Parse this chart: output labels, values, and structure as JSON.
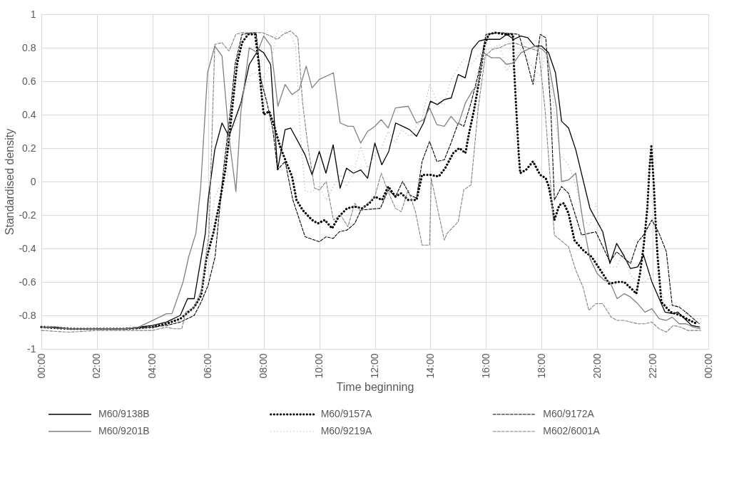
{
  "chart_data": {
    "type": "line",
    "xlabel": "Time beginning",
    "ylabel": "Standardised density",
    "xlim": [
      0,
      24
    ],
    "xticks": [
      {
        "value": 0,
        "label": "00:00"
      },
      {
        "value": 2,
        "label": "02:00"
      },
      {
        "value": 4,
        "label": "04:00"
      },
      {
        "value": 6,
        "label": "06:00"
      },
      {
        "value": 8,
        "label": "08:00"
      },
      {
        "value": 10,
        "label": "10:00"
      },
      {
        "value": 12,
        "label": "12:00"
      },
      {
        "value": 14,
        "label": "14:00"
      },
      {
        "value": 16,
        "label": "16:00"
      },
      {
        "value": 18,
        "label": "18:00"
      },
      {
        "value": 20,
        "label": "20:00"
      },
      {
        "value": 22,
        "label": "22:00"
      },
      {
        "value": 24,
        "label": "00:00"
      }
    ],
    "ylim": [
      -1,
      1
    ],
    "yticks": [
      -1,
      -0.8,
      -0.6,
      -0.4,
      -0.2,
      0,
      0.2,
      0.4,
      0.6,
      0.8,
      1
    ],
    "grid": true,
    "legend": "bottom",
    "marker": "none",
    "series": [
      {
        "name": "M60/9138B",
        "color": "#000000",
        "line_style": "solid",
        "x": [
          0,
          0.5,
          1,
          1.5,
          2,
          2.5,
          3,
          3.5,
          4,
          4.5,
          5,
          5.26,
          5.5,
          5.9,
          6.0,
          6.24,
          6.5,
          6.75,
          7.18,
          7.48,
          7.82,
          8.0,
          8.25,
          8.5,
          8.77,
          8.97,
          9.49,
          9.74,
          10.0,
          10.24,
          10.5,
          10.75,
          10.98,
          11.23,
          11.49,
          11.74,
          12.0,
          12.25,
          12.5,
          12.75,
          13.0,
          13.25,
          13.5,
          13.75,
          14.0,
          14.25,
          14.5,
          14.75,
          15.0,
          15.25,
          15.5,
          15.75,
          16.0,
          16.5,
          16.75,
          17.0,
          17.25,
          17.5,
          17.75,
          18.0,
          18.25,
          18.5,
          18.72,
          18.97,
          19.23,
          19.74,
          20.0,
          20.2,
          20.46,
          20.7,
          20.95,
          21.2,
          21.46,
          21.67,
          21.97,
          22.44,
          22.74,
          22.9,
          23.15,
          23.4,
          23.7
        ],
        "values": [
          -0.87,
          -0.87,
          -0.88,
          -0.88,
          -0.88,
          -0.88,
          -0.88,
          -0.87,
          -0.86,
          -0.84,
          -0.8,
          -0.7,
          -0.7,
          -0.31,
          -0.11,
          0.19,
          0.35,
          0.27,
          0.47,
          0.7,
          0.79,
          0.77,
          0.7,
          0.07,
          0.31,
          0.32,
          0.16,
          0.04,
          0.18,
          0.05,
          0.22,
          -0.04,
          0.08,
          0.05,
          0.07,
          0.02,
          0.23,
          0.1,
          0.18,
          0.35,
          0.33,
          0.31,
          0.27,
          0.35,
          0.48,
          0.46,
          0.49,
          0.5,
          0.64,
          0.62,
          0.79,
          0.84,
          0.85,
          0.85,
          0.88,
          0.85,
          0.87,
          0.86,
          0.81,
          0.81,
          0.77,
          0.65,
          0.36,
          0.32,
          0.19,
          -0.16,
          -0.24,
          -0.3,
          -0.49,
          -0.37,
          -0.44,
          -0.52,
          -0.51,
          -0.44,
          -0.6,
          -0.78,
          -0.79,
          -0.78,
          -0.82,
          -0.86,
          -0.87
        ]
      },
      {
        "name": "M60/9157A",
        "color": "#000000",
        "line_style": "dotted",
        "x": [
          0,
          1,
          2,
          3,
          4,
          4.5,
          5,
          5.5,
          5.75,
          5.94,
          6.2,
          6.41,
          6.62,
          6.75,
          6.92,
          7.05,
          7.22,
          7.44,
          7.69,
          7.82,
          7.9,
          8.0,
          8.2,
          8.38,
          8.59,
          8.8,
          9.02,
          9.18,
          9.4,
          9.74,
          9.95,
          10.2,
          10.46,
          10.7,
          11.0,
          11.28,
          11.54,
          11.8,
          12.0,
          12.26,
          12.48,
          12.74,
          12.95,
          13.2,
          13.5,
          13.7,
          14.0,
          14.3,
          14.53,
          14.82,
          15.04,
          15.26,
          15.38,
          15.56,
          15.69,
          15.82,
          15.95,
          16.1,
          16.33,
          16.67,
          16.97,
          17.0,
          17.1,
          17.18,
          17.23,
          17.44,
          17.69,
          17.95,
          18.15,
          18.26,
          18.38,
          18.46,
          18.64,
          18.8,
          18.97,
          19.18,
          19.49,
          19.8,
          20.08,
          20.43,
          20.77,
          20.97,
          21.23,
          21.41,
          21.54,
          21.67,
          21.8,
          21.88,
          21.95,
          22.05,
          22.1,
          22.18,
          22.31,
          22.64,
          23.0,
          23.33,
          23.6
        ],
        "values": [
          -0.87,
          -0.88,
          -0.88,
          -0.88,
          -0.87,
          -0.85,
          -0.82,
          -0.75,
          -0.68,
          -0.46,
          -0.3,
          -0.13,
          0.07,
          0.25,
          0.52,
          0.71,
          0.83,
          0.88,
          0.88,
          0.71,
          0.56,
          0.4,
          0.42,
          0.33,
          0.21,
          0.12,
          0.03,
          -0.11,
          -0.17,
          -0.23,
          -0.25,
          -0.23,
          -0.28,
          -0.21,
          -0.16,
          -0.15,
          -0.16,
          -0.13,
          -0.09,
          -0.11,
          -0.03,
          -0.09,
          -0.07,
          -0.11,
          -0.11,
          0.04,
          0.04,
          0.03,
          0.08,
          0.17,
          0.2,
          0.17,
          0.28,
          0.42,
          0.54,
          0.68,
          0.82,
          0.88,
          0.89,
          0.88,
          0.88,
          0.71,
          0.4,
          0.16,
          0.05,
          0.07,
          0.12,
          0.04,
          0.02,
          -0.03,
          -0.14,
          -0.23,
          -0.14,
          -0.13,
          -0.19,
          -0.35,
          -0.41,
          -0.45,
          -0.52,
          -0.61,
          -0.6,
          -0.6,
          -0.64,
          -0.67,
          -0.55,
          -0.39,
          -0.17,
          0.07,
          0.21,
          -0.05,
          -0.23,
          -0.46,
          -0.72,
          -0.78,
          -0.8,
          -0.83,
          -0.85
        ]
      },
      {
        "name": "M60/9172A",
        "color": "#000000",
        "line_style": "dashed",
        "x": [
          0,
          1,
          2,
          3,
          4,
          4.5,
          5,
          5.5,
          5.75,
          6.0,
          6.25,
          6.54,
          6.8,
          6.97,
          7.22,
          7.73,
          7.9,
          8.12,
          8.33,
          8.5,
          8.77,
          9.05,
          9.49,
          10.0,
          10.25,
          10.5,
          10.72,
          11.0,
          11.28,
          11.5,
          12.2,
          12.48,
          12.74,
          13.0,
          13.26,
          13.5,
          13.7,
          13.97,
          14.23,
          14.5,
          14.74,
          15.0,
          15.2,
          15.46,
          15.72,
          15.9,
          16.0,
          16.5,
          17.18,
          17.44,
          17.69,
          17.95,
          18.15,
          18.33,
          18.46,
          18.72,
          18.97,
          19.44,
          19.95,
          20.46,
          20.7,
          21.2,
          21.46,
          21.67,
          21.97,
          22.23,
          22.49,
          22.7,
          22.95,
          23.26,
          23.67
        ],
        "values": [
          -0.87,
          -0.88,
          -0.88,
          -0.88,
          -0.87,
          -0.86,
          -0.84,
          -0.8,
          -0.72,
          -0.62,
          -0.45,
          0.05,
          0.42,
          0.7,
          0.88,
          0.89,
          0.61,
          0.47,
          0.31,
          0.07,
          0.12,
          -0.11,
          -0.33,
          -0.36,
          -0.33,
          -0.34,
          -0.3,
          -0.29,
          -0.25,
          -0.17,
          -0.16,
          -0.05,
          -0.09,
          0.0,
          -0.08,
          -0.1,
          0.12,
          0.24,
          0.12,
          0.13,
          0.23,
          0.35,
          0.33,
          0.47,
          0.64,
          0.79,
          0.88,
          0.89,
          0.88,
          0.74,
          0.58,
          0.88,
          0.86,
          0.44,
          -0.11,
          -0.03,
          -0.07,
          -0.32,
          -0.3,
          -0.48,
          -0.42,
          -0.49,
          -0.36,
          -0.32,
          -0.23,
          -0.31,
          -0.42,
          -0.74,
          -0.75,
          -0.79,
          -0.85
        ]
      },
      {
        "name": "M60/9201B",
        "color": "#808080",
        "line_style": "solid",
        "x": [
          0,
          1,
          2,
          3,
          3.5,
          4,
          4.5,
          4.7,
          5.1,
          5.3,
          5.56,
          5.73,
          5.98,
          6.24,
          6.5,
          6.75,
          7.0,
          7.18,
          7.48,
          7.77,
          8.0,
          8.26,
          8.51,
          8.77,
          9.02,
          9.28,
          9.53,
          9.74,
          10.0,
          10.51,
          10.75,
          11.03,
          11.23,
          11.49,
          11.74,
          12.0,
          12.23,
          12.48,
          12.74,
          13.2,
          13.5,
          13.76,
          13.97,
          14.23,
          14.5,
          14.74,
          15.0,
          15.26,
          15.5,
          15.72,
          15.9,
          16.2,
          16.5,
          16.74,
          17.0,
          17.26,
          17.5,
          17.77,
          18.03,
          18.2,
          18.54,
          18.72,
          18.97,
          19.23,
          19.49,
          19.74,
          20.0,
          20.26,
          20.46,
          20.72,
          20.97,
          21.2,
          21.46,
          21.72,
          21.97,
          22.23,
          22.49,
          22.7,
          22.95,
          23.2,
          23.46,
          23.72
        ],
        "values": [
          -0.87,
          -0.88,
          -0.88,
          -0.88,
          -0.87,
          -0.83,
          -0.79,
          -0.79,
          -0.6,
          -0.45,
          -0.31,
          -0.04,
          0.65,
          0.81,
          0.75,
          0.27,
          -0.06,
          0.42,
          0.8,
          0.77,
          0.87,
          0.81,
          0.45,
          0.58,
          0.52,
          0.55,
          0.69,
          0.56,
          0.61,
          0.65,
          0.35,
          0.33,
          0.33,
          0.23,
          0.3,
          0.33,
          0.37,
          0.32,
          0.44,
          0.45,
          0.35,
          0.37,
          0.44,
          0.34,
          0.33,
          0.39,
          0.34,
          0.47,
          0.54,
          0.58,
          0.77,
          0.74,
          0.74,
          0.7,
          0.71,
          0.77,
          0.79,
          0.81,
          0.79,
          0.76,
          0.44,
          0.0,
          0.01,
          0.05,
          -0.24,
          -0.46,
          -0.55,
          -0.59,
          -0.6,
          -0.7,
          -0.67,
          -0.69,
          -0.73,
          -0.78,
          -0.76,
          -0.82,
          -0.83,
          -0.81,
          -0.85,
          -0.85,
          -0.87,
          -0.88
        ]
      },
      {
        "name": "M60/9219A",
        "color": "#a6a6a6",
        "line_style": "dotted",
        "x": [
          0,
          1,
          2,
          3,
          4,
          4.5,
          5,
          5.5,
          5.75,
          6.07,
          6.24,
          6.5,
          6.75,
          7.0,
          7.26,
          7.52,
          7.73,
          7.95,
          8.25,
          8.38,
          8.5,
          8.77,
          8.97,
          9.15,
          9.3,
          9.49,
          9.74,
          10.0,
          10.25,
          10.5,
          10.77,
          10.98,
          11.23,
          11.49,
          11.74,
          12.0,
          12.23,
          12.48,
          12.74,
          12.95,
          13.26,
          13.5,
          13.71,
          13.97,
          14.23,
          14.49,
          14.74,
          15.0,
          15.2,
          15.46,
          15.72,
          15.97,
          16.2,
          16.49,
          16.74,
          17.0,
          17.26,
          17.51,
          17.74,
          17.95,
          18.15,
          18.4,
          18.67,
          18.97,
          19.23,
          19.49,
          19.74,
          19.95,
          20.2,
          20.46,
          20.7,
          20.95,
          21.2,
          21.46,
          21.72,
          21.97,
          22.18,
          22.44,
          22.7,
          22.95,
          23.2,
          23.46,
          23.72
        ],
        "values": [
          -0.86,
          -0.87,
          -0.88,
          -0.88,
          -0.87,
          -0.86,
          -0.83,
          -0.76,
          -0.66,
          -0.31,
          -0.09,
          0.0,
          0.29,
          0.35,
          0.52,
          0.64,
          0.65,
          0.61,
          0.7,
          0.82,
          0.9,
          0.89,
          0.88,
          0.81,
          0.33,
          -0.06,
          -0.06,
          -0.03,
          -0.11,
          -0.03,
          0.04,
          -0.03,
          0.05,
          0.21,
          0.08,
          0.16,
          0.2,
          0.3,
          0.23,
          0.31,
          0.27,
          0.33,
          0.38,
          0.58,
          0.48,
          0.46,
          0.61,
          0.68,
          0.73,
          0.7,
          0.75,
          0.79,
          0.79,
          0.82,
          0.66,
          0.73,
          0.79,
          0.72,
          0.67,
          0.63,
          0.77,
          0.5,
          0.16,
          0.1,
          -0.02,
          -0.23,
          -0.26,
          -0.13,
          -0.32,
          -0.51,
          -0.51,
          -0.42,
          -0.56,
          -0.6,
          -0.6,
          -0.56,
          -0.55,
          -0.74,
          -0.74,
          -0.74,
          -0.79,
          -0.82,
          -0.82
        ]
      },
      {
        "name": "M602/6001A",
        "color": "#808080",
        "line_style": "dashed",
        "x": [
          0,
          1,
          2,
          3,
          4,
          4.5,
          4.75,
          5.05,
          5.2,
          5.5,
          5.75,
          6.03,
          6.24,
          6.5,
          6.75,
          7.0,
          7.22,
          7.95,
          8.25,
          8.5,
          8.7,
          8.97,
          9.23,
          9.4,
          9.57,
          9.83,
          10.0,
          10.25,
          10.51,
          10.77,
          11.03,
          11.28,
          11.49,
          11.74,
          12.0,
          12.23,
          12.48,
          12.74,
          12.95,
          13.2,
          13.46,
          13.7,
          13.97,
          14.03,
          14.28,
          14.5,
          14.6,
          15.0,
          15.2,
          15.46,
          15.72,
          15.97,
          16.23,
          16.49,
          16.74,
          17.0,
          17.5,
          17.9,
          18.12,
          18.46,
          18.97,
          19.23,
          19.49,
          19.7,
          19.95,
          20.2,
          20.5,
          20.72,
          20.97,
          21.46,
          21.72,
          21.97,
          22.23,
          22.49,
          22.74,
          23.0,
          23.26,
          23.5,
          23.72
        ],
        "values": [
          -0.89,
          -0.9,
          -0.89,
          -0.89,
          -0.89,
          -0.87,
          -0.88,
          -0.88,
          -0.78,
          -0.75,
          -0.65,
          -0.31,
          0.82,
          0.83,
          0.78,
          0.88,
          0.89,
          0.89,
          0.87,
          0.85,
          0.88,
          0.9,
          0.86,
          0.47,
          0.24,
          -0.04,
          -0.05,
          0.0,
          -0.23,
          -0.2,
          -0.27,
          -0.13,
          -0.18,
          -0.13,
          -0.09,
          0.05,
          -0.06,
          -0.16,
          -0.18,
          -0.05,
          -0.18,
          -0.38,
          -0.38,
          0.02,
          -0.18,
          -0.35,
          -0.31,
          -0.24,
          -0.05,
          -0.02,
          0.44,
          0.75,
          0.79,
          0.8,
          0.82,
          0.83,
          0.8,
          0.78,
          0.44,
          -0.32,
          -0.39,
          -0.53,
          -0.63,
          -0.77,
          -0.73,
          -0.73,
          -0.81,
          -0.83,
          -0.83,
          -0.85,
          -0.85,
          -0.84,
          -0.88,
          -0.9,
          -0.86,
          -0.87,
          -0.89,
          -0.89,
          -0.89
        ]
      }
    ]
  }
}
